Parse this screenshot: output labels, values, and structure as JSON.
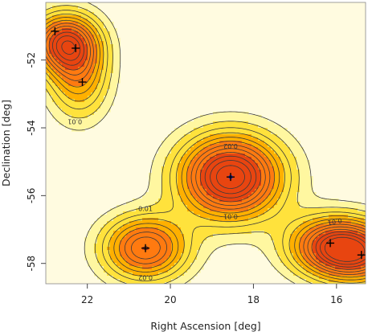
{
  "chart_data": {
    "type": "heatmap",
    "xlabel": "Right Ascension [deg]",
    "ylabel": "Declination [deg]",
    "xlim": [
      23.0,
      15.3
    ],
    "ylim": [
      -58.6,
      -50.3
    ],
    "x_reversed": true,
    "x_ticks": [
      22,
      20,
      18,
      16
    ],
    "x_tick_labels": [
      "22",
      "20",
      "18",
      "16"
    ],
    "y_ticks": [
      -52,
      -54,
      -56,
      -58
    ],
    "y_tick_labels": [
      "-52",
      "-54",
      "-56",
      "-58"
    ],
    "colormap": [
      "#fffbe0",
      "#fff7a0",
      "#ffe23c",
      "#ffb000",
      "#ff7a10",
      "#e84510"
    ],
    "contour_levels": [
      0.01,
      0.02,
      0.03,
      0.04,
      0.05,
      0.06,
      0.07,
      0.08,
      0.09,
      0.1,
      0.11,
      0.12
    ],
    "contour_label_text": {
      "0.01": "0.01",
      "0.02": "0.02",
      "0.03": "0.03",
      "0.04": "0.04",
      "0.05": "0.05",
      "0.06": "0.06"
    },
    "sources": [
      {
        "ra": 22.78,
        "dec": -51.15,
        "marker": "+"
      },
      {
        "ra": 22.28,
        "dec": -51.65,
        "marker": "+"
      },
      {
        "ra": 22.12,
        "dec": -52.65,
        "marker": "+"
      },
      {
        "ra": 18.55,
        "dec": -55.45,
        "marker": "+"
      },
      {
        "ra": 20.6,
        "dec": -57.55,
        "marker": "+"
      },
      {
        "ra": 16.15,
        "dec": -57.4,
        "marker": "+"
      },
      {
        "ra": 15.4,
        "dec": -57.75,
        "marker": "+"
      }
    ],
    "highlight_source": {
      "ra": 18.55,
      "dec": -55.45,
      "color": "#2233cc"
    },
    "clusters": [
      {
        "ra": 22.55,
        "dec": -51.5,
        "sigma_ra": 0.55,
        "sigma_dec": 0.6,
        "peak": 0.1
      },
      {
        "ra": 22.2,
        "dec": -52.5,
        "sigma_ra": 0.5,
        "sigma_dec": 0.85,
        "peak": 0.055
      },
      {
        "ra": 18.55,
        "dec": -55.45,
        "sigma_ra": 0.85,
        "sigma_dec": 0.85,
        "peak": 0.13
      },
      {
        "ra": 20.6,
        "dec": -57.55,
        "sigma_ra": 0.7,
        "sigma_dec": 0.65,
        "peak": 0.09
      },
      {
        "ra": 16.1,
        "dec": -57.45,
        "sigma_ra": 0.75,
        "sigma_dec": 0.6,
        "peak": 0.085
      },
      {
        "ra": 15.45,
        "dec": -57.75,
        "sigma_ra": 0.75,
        "sigma_dec": 0.6,
        "peak": 0.075
      }
    ]
  }
}
